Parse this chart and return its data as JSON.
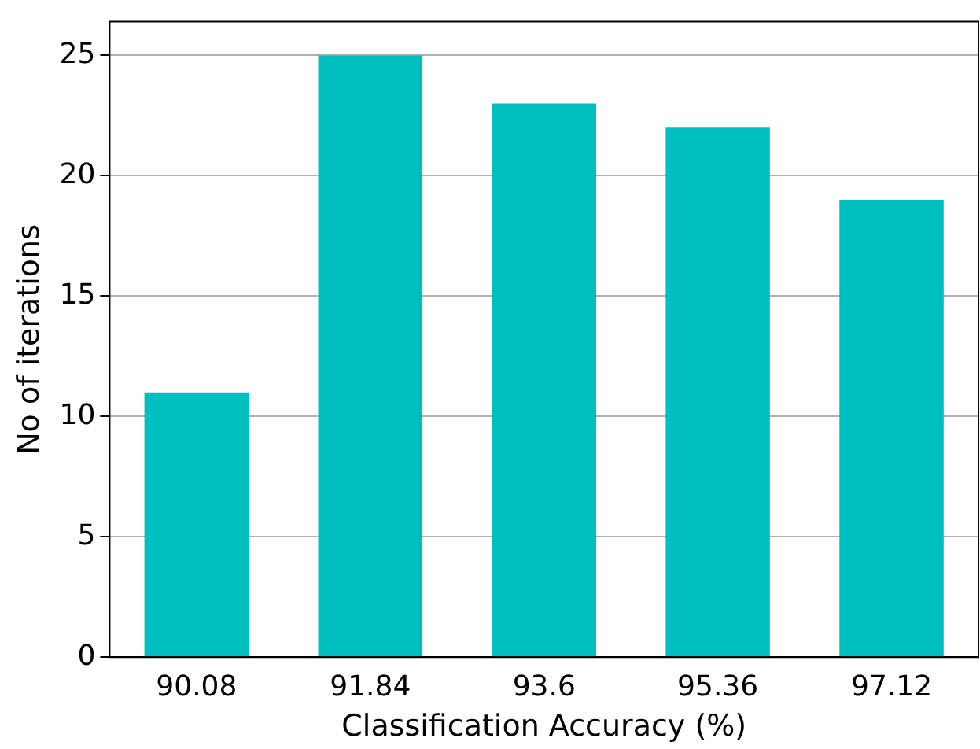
{
  "chart_data": {
    "type": "bar",
    "xlabel": "Classification Accuracy (%)",
    "ylabel": "No of iterations",
    "categories": [
      "90.08",
      "91.84",
      "93.6",
      "95.36",
      "97.12"
    ],
    "values": [
      11,
      25,
      23,
      22,
      19
    ],
    "color": "#00bfbf",
    "ylim": [
      0,
      26.4
    ],
    "yticks": [
      0,
      5,
      10,
      15,
      20,
      25
    ],
    "grid": "y"
  }
}
